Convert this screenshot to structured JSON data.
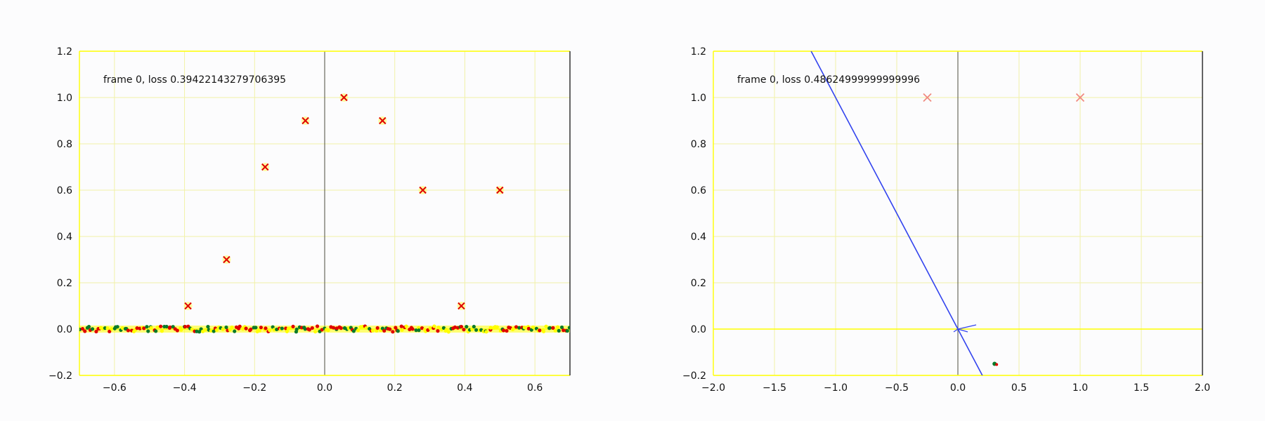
{
  "chart_data": [
    {
      "type": "scatter",
      "annotation": "frame 0, loss 0.39422143279706395",
      "xlim": [
        -0.7,
        0.7
      ],
      "ylim": [
        -0.2,
        1.2
      ],
      "xticks": [
        -0.6,
        -0.4,
        -0.2,
        0.0,
        0.2,
        0.4,
        0.6
      ],
      "xtick_labels": [
        "−0.6",
        "−0.4",
        "−0.2",
        "0.0",
        "0.2",
        "0.4",
        "0.6"
      ],
      "yticks": [
        -0.2,
        0.0,
        0.2,
        0.4,
        0.6,
        0.8,
        1.0,
        1.2
      ],
      "ytick_labels": [
        "−0.2",
        "0.0",
        "0.2",
        "0.4",
        "0.6",
        "0.8",
        "1.0",
        "1.2"
      ],
      "grid": true,
      "targets": {
        "marker": "x",
        "color": "#e00000",
        "x": [
          -0.39,
          -0.28,
          -0.17,
          -0.055,
          0.055,
          0.165,
          0.28,
          0.39,
          0.5
        ],
        "y": [
          0.1,
          0.3,
          0.7,
          0.9,
          1.0,
          0.9,
          0.6,
          0.1,
          0.6
        ]
      },
      "baseline_band": {
        "y": 0.0,
        "x_range": [
          -0.7,
          0.7
        ],
        "colors": [
          "#e00000",
          "#0a7a2a",
          "#ffff00"
        ]
      },
      "colors": {
        "axes": "#000000",
        "zero_lines": "#ffff00",
        "grid": "#f1f1a8"
      }
    },
    {
      "type": "scatter",
      "annotation": "frame 0, loss 0.48624999999999996",
      "xlim": [
        -2.0,
        2.0
      ],
      "ylim": [
        -0.2,
        1.2
      ],
      "xticks": [
        -2.0,
        -1.5,
        -1.0,
        -0.5,
        0.0,
        0.5,
        1.0,
        1.5,
        2.0
      ],
      "xtick_labels": [
        "−2.0",
        "−1.5",
        "−1.0",
        "−0.5",
        "0.0",
        "0.5",
        "1.0",
        "1.5",
        "2.0"
      ],
      "yticks": [
        -0.2,
        0.0,
        0.2,
        0.4,
        0.6,
        0.8,
        1.0,
        1.2
      ],
      "ytick_labels": [
        "−0.2",
        "0.0",
        "0.2",
        "0.4",
        "0.6",
        "0.8",
        "1.0",
        "1.2"
      ],
      "grid": true,
      "targets": {
        "marker": "x",
        "color": "#f08a80",
        "x": [
          -0.25,
          1.0
        ],
        "y": [
          1.0,
          1.0
        ]
      },
      "line": {
        "color": "#3344ee",
        "x": [
          -1.2,
          0.2
        ],
        "y": [
          1.2,
          -0.2
        ]
      },
      "small_points": {
        "x": [
          0.3
        ],
        "y": [
          -0.15
        ],
        "colors": [
          "#0a7a2a",
          "#e00000"
        ]
      },
      "colors": {
        "axes": "#000000",
        "zero_lines": "#ffff00",
        "grid": "#f1f1a8"
      }
    }
  ]
}
